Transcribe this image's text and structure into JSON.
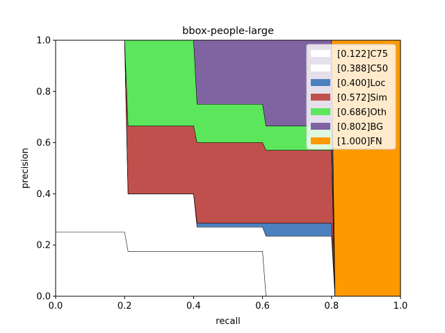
{
  "chart_data": {
    "type": "area",
    "title": "bbox-people-large",
    "xlabel": "recall",
    "ylabel": "precision",
    "xlim": [
      0,
      1
    ],
    "ylim": [
      0,
      1
    ],
    "xticks": [
      "0.0",
      "0.2",
      "0.4",
      "0.6",
      "0.8",
      "1.0"
    ],
    "yticks": [
      "0.0",
      "0.2",
      "0.4",
      "0.6",
      "0.8",
      "1.0"
    ],
    "grid": false,
    "legend_position": "top-right",
    "series": [
      {
        "name": "[0.122]C75",
        "color": "#ffffff",
        "points": [
          [
            0,
            0.25
          ],
          [
            0.2,
            0.25
          ],
          [
            0.21,
            0.175
          ],
          [
            0.6,
            0.175
          ],
          [
            0.61,
            0.0
          ],
          [
            1.0,
            0.0
          ]
        ]
      },
      {
        "name": "[0.388]C50",
        "color": "#ffffff",
        "points": [
          [
            0,
            1.0
          ],
          [
            0.2,
            1.0
          ],
          [
            0.21,
            0.4
          ],
          [
            0.4,
            0.4
          ],
          [
            0.41,
            0.27
          ],
          [
            0.6,
            0.27
          ],
          [
            0.61,
            0.235
          ],
          [
            0.8,
            0.235
          ],
          [
            0.81,
            0.0
          ],
          [
            1.0,
            0.0
          ]
        ]
      },
      {
        "name": "[0.400]Loc",
        "color": "#4c81c0",
        "points": [
          [
            0,
            1.0
          ],
          [
            0.2,
            1.0
          ],
          [
            0.21,
            0.4
          ],
          [
            0.4,
            0.4
          ],
          [
            0.41,
            0.285
          ],
          [
            0.8,
            0.285
          ],
          [
            0.81,
            0.0
          ],
          [
            1.0,
            0.0
          ]
        ]
      },
      {
        "name": "[0.572]Sim",
        "color": "#c0504d",
        "points": [
          [
            0,
            1.0
          ],
          [
            0.2,
            1.0
          ],
          [
            0.21,
            0.665
          ],
          [
            0.4,
            0.665
          ],
          [
            0.41,
            0.6
          ],
          [
            0.6,
            0.6
          ],
          [
            0.61,
            0.57
          ],
          [
            0.8,
            0.57
          ],
          [
            0.81,
            0.0
          ],
          [
            1.0,
            0.0
          ]
        ]
      },
      {
        "name": "[0.686]Oth",
        "color": "#5ce65c",
        "points": [
          [
            0,
            1.0
          ],
          [
            0.4,
            1.0
          ],
          [
            0.41,
            0.75
          ],
          [
            0.6,
            0.75
          ],
          [
            0.61,
            0.665
          ],
          [
            0.8,
            0.665
          ],
          [
            0.81,
            0.0
          ],
          [
            1.0,
            0.0
          ]
        ]
      },
      {
        "name": "[0.802]BG",
        "color": "#8064a2",
        "points": [
          [
            0,
            1.0
          ],
          [
            0.8,
            1.0
          ],
          [
            0.81,
            0.0
          ],
          [
            1.0,
            0.0
          ]
        ]
      },
      {
        "name": "[1.000]FN",
        "color": "#ff9900",
        "points": [
          [
            0,
            1.0
          ],
          [
            1.0,
            1.0
          ]
        ]
      }
    ]
  }
}
